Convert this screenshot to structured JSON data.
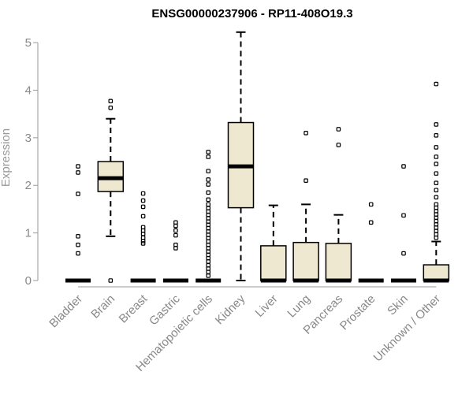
{
  "chart_data": {
    "type": "boxplot",
    "title": "ENSG00000237906 - RP11-408O19.3",
    "xlabel": "",
    "ylabel": "Expression",
    "ylim": [
      0,
      5.2
    ],
    "yticks": [
      0,
      1,
      2,
      3,
      4,
      5
    ],
    "box_fill": "#efe8d0",
    "categories": [
      "Bladder",
      "Brain",
      "Breast",
      "Gastric",
      "Hematopoietic cells",
      "Kidney",
      "Liver",
      "Lung",
      "Pancreas",
      "Prostate",
      "Skin",
      "Unknown / Other"
    ],
    "boxes": [
      {
        "q1": 0,
        "median": 0,
        "q3": 0,
        "whisker_low": 0,
        "whisker_high": 0,
        "outliers": [
          0.57,
          0.75,
          0.93,
          1.82,
          2.27,
          2.4
        ]
      },
      {
        "q1": 1.87,
        "median": 2.15,
        "q3": 2.5,
        "whisker_low": 0.93,
        "whisker_high": 3.4,
        "outliers": [
          0,
          3.63,
          3.77
        ]
      },
      {
        "q1": 0,
        "median": 0,
        "q3": 0,
        "whisker_low": 0,
        "whisker_high": 0,
        "outliers": [
          0.78,
          0.83,
          0.9,
          0.98,
          1.05,
          1.12,
          1.35,
          1.55,
          1.68,
          1.83
        ]
      },
      {
        "q1": 0,
        "median": 0,
        "q3": 0,
        "whisker_low": 0,
        "whisker_high": 0,
        "outliers": [
          0.68,
          0.75,
          0.95,
          1.05,
          1.15,
          1.22
        ]
      },
      {
        "q1": 0,
        "median": 0,
        "q3": 0,
        "whisker_low": 0,
        "whisker_high": 0,
        "outliers": [
          0.1,
          0.18,
          0.25,
          0.32,
          0.4,
          0.47,
          0.54,
          0.61,
          0.68,
          0.75,
          0.82,
          0.89,
          0.96,
          1.03,
          1.1,
          1.17,
          1.24,
          1.31,
          1.38,
          1.45,
          1.52,
          1.6,
          1.7,
          1.85,
          2.02,
          2.12,
          2.3,
          2.6,
          2.7
        ]
      },
      {
        "q1": 1.53,
        "median": 2.4,
        "q3": 3.32,
        "whisker_low": 0,
        "whisker_high": 5.22,
        "outliers": []
      },
      {
        "q1": 0,
        "median": 0,
        "q3": 0.73,
        "whisker_low": 0,
        "whisker_high": 1.58,
        "outliers": []
      },
      {
        "q1": 0,
        "median": 0,
        "q3": 0.8,
        "whisker_low": 0,
        "whisker_high": 1.6,
        "outliers": [
          2.1,
          3.1
        ]
      },
      {
        "q1": 0,
        "median": 0,
        "q3": 0.78,
        "whisker_low": 0,
        "whisker_high": 1.38,
        "outliers": [
          2.85,
          3.18
        ]
      },
      {
        "q1": 0,
        "median": 0,
        "q3": 0,
        "whisker_low": 0,
        "whisker_high": 0,
        "outliers": [
          1.22,
          1.6
        ]
      },
      {
        "q1": 0,
        "median": 0,
        "q3": 0,
        "whisker_low": 0,
        "whisker_high": 0,
        "outliers": [
          0.57,
          1.37,
          2.4
        ]
      },
      {
        "q1": 0,
        "median": 0,
        "q3": 0.33,
        "whisker_low": 0,
        "whisker_high": 0.82,
        "outliers": [
          0.9,
          0.97,
          1.04,
          1.11,
          1.18,
          1.25,
          1.32,
          1.39,
          1.46,
          1.53,
          1.6,
          1.75,
          1.9,
          2.05,
          2.25,
          2.45,
          2.6,
          2.8,
          3.05,
          3.28,
          4.13
        ]
      }
    ]
  }
}
